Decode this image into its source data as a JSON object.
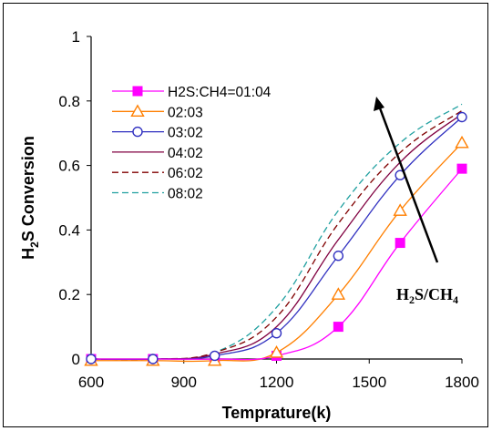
{
  "chart_data": {
    "type": "line",
    "xlabel": "Temprature(k)",
    "ylabel": "H2S Conversion",
    "xlim": [
      600,
      1800
    ],
    "ylim": [
      0,
      1
    ],
    "xticks": [
      "600",
      "900",
      "1200",
      "1500",
      "1800"
    ],
    "yticks": [
      "0",
      "0.2",
      "0.4",
      "0.6",
      "0.8",
      "1"
    ],
    "annotation": "H2S/CH4",
    "series": [
      {
        "name": "H2S:CH4=01:04",
        "color": "#ff00ff",
        "marker": "square-filled",
        "line": "solid",
        "points": [
          [
            600,
            0.0
          ],
          [
            800,
            0.0
          ],
          [
            1000,
            0.0
          ],
          [
            1200,
            0.01
          ],
          [
            1400,
            0.1
          ],
          [
            1600,
            0.36
          ],
          [
            1800,
            0.59
          ]
        ]
      },
      {
        "name": "02:03",
        "color": "#ff7f00",
        "marker": "triangle-open",
        "line": "solid",
        "points": [
          [
            600,
            -0.005
          ],
          [
            800,
            -0.005
          ],
          [
            1000,
            -0.005
          ],
          [
            1200,
            0.02
          ],
          [
            1400,
            0.2
          ],
          [
            1600,
            0.46
          ],
          [
            1800,
            0.67
          ]
        ]
      },
      {
        "name": "03:02",
        "color": "#3030c0",
        "marker": "circle-open",
        "line": "solid",
        "points": [
          [
            600,
            0.0
          ],
          [
            800,
            0.0
          ],
          [
            1000,
            0.01
          ],
          [
            1200,
            0.08
          ],
          [
            1400,
            0.32
          ],
          [
            1600,
            0.57
          ],
          [
            1800,
            0.75
          ]
        ]
      },
      {
        "name": "04:02",
        "color": "#800040",
        "marker": "none",
        "line": "solid",
        "points": [
          [
            600,
            0.0
          ],
          [
            800,
            0.0
          ],
          [
            1000,
            0.015
          ],
          [
            1200,
            0.1
          ],
          [
            1400,
            0.37
          ],
          [
            1600,
            0.61
          ],
          [
            1800,
            0.76
          ]
        ]
      },
      {
        "name": "06:02",
        "color": "#800000",
        "marker": "none",
        "line": "dash",
        "points": [
          [
            600,
            0.0
          ],
          [
            800,
            0.0
          ],
          [
            1000,
            0.02
          ],
          [
            1200,
            0.13
          ],
          [
            1400,
            0.42
          ],
          [
            1600,
            0.64
          ],
          [
            1800,
            0.77
          ]
        ]
      },
      {
        "name": "08:02",
        "color": "#20a0a0",
        "marker": "none",
        "line": "dash",
        "points": [
          [
            600,
            0.0
          ],
          [
            800,
            0.0
          ],
          [
            1000,
            0.02
          ],
          [
            1200,
            0.16
          ],
          [
            1400,
            0.46
          ],
          [
            1600,
            0.67
          ],
          [
            1800,
            0.79
          ]
        ]
      }
    ]
  }
}
